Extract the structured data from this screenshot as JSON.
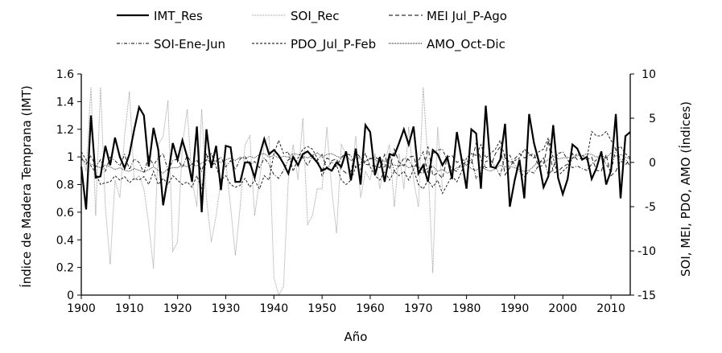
{
  "chart_data": {
    "type": "line",
    "xlabel": "Año",
    "ylabel": "Índice de  Madera Temprana (IMT)",
    "y2label": "SOI, MEI, PDO, AMO (Índices)",
    "xlim": [
      1900,
      2014
    ],
    "ylim": [
      0,
      1.6
    ],
    "y2lim": [
      -15,
      10
    ],
    "xticks": [
      "1900",
      "1910",
      "1920",
      "1930",
      "1940",
      "1950",
      "1960",
      "1970",
      "1980",
      "1990",
      "2000",
      "2010"
    ],
    "yticks": [
      "0",
      "0.2",
      "0.4",
      "0.6",
      "0.8",
      "1",
      "1.2",
      "1.4",
      "1.6"
    ],
    "y2ticks": [
      "-15",
      "-10",
      "-5",
      "0",
      "5",
      "10"
    ],
    "grid": false,
    "legend_position": "top",
    "series": [
      {
        "name": "IMT_Res",
        "axis": "left",
        "style": "solid-thick",
        "start": 1900,
        "values": [
          0.93,
          0.62,
          1.3,
          0.85,
          0.86,
          1.08,
          0.94,
          1.14,
          1.0,
          0.92,
          1.02,
          1.2,
          1.36,
          1.3,
          0.93,
          1.21,
          1.05,
          0.65,
          0.86,
          1.1,
          0.98,
          1.12,
          1.0,
          0.82,
          1.22,
          0.6,
          1.2,
          0.92,
          1.08,
          0.76,
          1.08,
          1.07,
          0.82,
          0.82,
          0.96,
          0.96,
          0.85,
          1.01,
          1.13,
          1.02,
          1.05,
          1.01,
          0.95,
          0.88,
          1.0,
          0.94,
          1.02,
          1.04,
          1.0,
          0.96,
          0.9,
          0.92,
          0.9,
          0.96,
          0.93,
          1.04,
          0.83,
          1.06,
          0.8,
          1.23,
          1.18,
          0.87,
          1.0,
          0.82,
          1.02,
          1.01,
          1.1,
          1.2,
          1.09,
          1.22,
          0.88,
          0.94,
          0.82,
          1.05,
          1.02,
          0.94,
          1.0,
          0.84,
          1.18,
          0.98,
          0.77,
          1.2,
          1.17,
          0.77,
          1.37,
          0.93,
          0.92,
          0.98,
          1.24,
          0.64,
          0.83,
          0.98,
          0.7,
          1.31,
          1.1,
          0.97,
          0.78,
          0.86,
          1.23,
          0.85,
          0.73,
          0.84,
          1.09,
          1.06,
          0.98,
          1.0,
          0.84,
          0.92,
          1.04,
          0.8,
          0.9,
          1.31,
          0.7,
          1.15,
          1.18
        ]
      },
      {
        "name": "SOI_Rec",
        "axis": "right",
        "style": "dotted-grey",
        "start": 1900,
        "values": [
          1,
          -1,
          8.5,
          -6,
          8.5,
          -5,
          -11.5,
          -2,
          -4,
          3,
          8,
          -2,
          -1.5,
          -3,
          -7,
          -12,
          2,
          3,
          7,
          -10,
          -9,
          2,
          6,
          -2,
          -5,
          6,
          -4,
          -9,
          -6,
          -2,
          0,
          -5,
          -10.5,
          -5,
          2,
          3,
          -6,
          -2,
          2,
          3,
          -13,
          -15,
          -14,
          -2,
          2,
          -2,
          5,
          -7,
          -6,
          -3,
          -3,
          4,
          -3,
          -8,
          2,
          1,
          -2,
          3,
          -4,
          -1,
          -2,
          1,
          -3,
          0,
          2,
          -5,
          1,
          -3,
          4,
          -2,
          -5,
          8.5,
          0,
          -12.5,
          4,
          -3
        ]
      },
      {
        "name": "MEI Jul_P-Ago",
        "axis": "right",
        "style": "dashed-long",
        "start": 1950,
        "values": [
          -1.0,
          0.5,
          0.2,
          0.4,
          -0.8,
          -1.2,
          -1.0,
          1.2,
          0.5,
          -0.2,
          -0.3,
          -0.4,
          -0.6,
          0.9,
          -0.8,
          1.5,
          0.0,
          -0.4,
          0.6,
          0.7,
          -1.0,
          -1.3,
          1.8,
          -1.5,
          -1.2,
          -1.8,
          0.6,
          0.8,
          0.0,
          0.3,
          0.2,
          -0.2,
          2.2,
          0.3,
          -0.6,
          -0.5,
          1.0,
          1.8,
          -1.4,
          -0.6,
          0.4,
          1.0,
          0.5,
          0.8,
          1.0,
          -0.5,
          -0.3,
          2.5,
          -1.2,
          -1.0,
          -0.5,
          -0.2,
          1.0,
          0.3,
          0.5,
          0.3,
          0.6,
          -0.9,
          -1.0,
          0.9,
          -1.5,
          -1.0,
          0.2,
          -0.3,
          0.5
        ]
      },
      {
        "name": "SOI-Ene-Jun",
        "axis": "right",
        "style": "dash-dot",
        "start": 1900,
        "values": [
          0.5,
          -0.2,
          0.8,
          -0.5,
          0.3,
          -1.0,
          0.6,
          0.2,
          -0.4,
          0.9,
          -0.8,
          0.4,
          0.0,
          -1.2,
          0.7,
          -0.3,
          0.5,
          1.0,
          -0.9,
          0.2,
          0.4,
          -0.6,
          0.8,
          -0.2,
          0.3,
          -1.0,
          0.9,
          -0.4,
          0.1,
          0.6,
          -0.5,
          0.2,
          -0.8,
          0.4,
          0.7,
          -0.3,
          0.1,
          -0.6,
          0.5,
          -0.2,
          -1.4,
          -1.8,
          -0.9,
          0.3,
          0.5,
          -0.2,
          0.6,
          -0.4,
          0.8,
          0.2,
          0.9,
          -0.7,
          0.1,
          -0.5,
          0.6,
          1.0,
          0.8,
          -0.6,
          -0.8,
          0.2,
          0.4,
          0.6,
          0.3,
          -0.6,
          0.9,
          -1.0,
          -0.4,
          0.5,
          0.3,
          -0.7,
          0.2,
          1.2,
          -1.2,
          1.0,
          1.4,
          1.5,
          0.2,
          -0.8,
          -1.0,
          0.0,
          -0.3,
          0.4,
          -1.8,
          -1.2,
          0.1,
          0.3,
          -0.5,
          -1.5,
          0.9,
          0.8,
          -0.3,
          -1.0,
          -1.6,
          -1.0,
          -1.2,
          -0.3,
          0.6,
          -1.5,
          -0.6,
          1.0,
          1.2,
          0.3,
          -0.6,
          -0.4,
          -0.7,
          -0.9,
          -0.2,
          0.3,
          0.9,
          -0.2,
          -1.0,
          1.5,
          0.3,
          0.4,
          -0.5
        ]
      },
      {
        "name": "PDO_Jul_P-Feb",
        "axis": "right",
        "style": "dashed-short",
        "start": 1900,
        "values": [
          1.2,
          0.3,
          -0.4,
          -1.2,
          -2.5,
          -2.3,
          -2.2,
          -1.5,
          -2.0,
          -1.6,
          -2.3,
          -1.8,
          -2.0,
          -1.6,
          -2.5,
          -1.0,
          -2.5,
          -1.8,
          -2.5,
          -1.5,
          -2.0,
          -2.5,
          -2.2,
          -2.8,
          -1.5,
          -3.0,
          0.5,
          1.0,
          -0.5,
          -2.0,
          -1.5,
          -2.5,
          -2.8,
          -2.6,
          -1.8,
          -2.8,
          -2.0,
          -3.0,
          -1.5,
          -2.0,
          1.0,
          2.5,
          1.0,
          1.2,
          -1.0,
          0.5,
          1.5,
          1.8,
          1.5,
          0.5,
          -1.5,
          -0.5,
          -1.0,
          -0.3,
          -2.0,
          -2.5,
          -2.0,
          -0.5,
          -0.2,
          1.0,
          -0.5,
          -1.5,
          -2.0,
          -1.0,
          -2.0,
          -1.0,
          -1.5,
          -1.0,
          -2.0,
          -0.8,
          -2.5,
          -3.0,
          -2.0,
          -2.8,
          -2.0,
          -3.5,
          -2.5,
          -1.5,
          -2.2,
          -1.0,
          0.5,
          1.0,
          0.8,
          2.0,
          0.5,
          1.0,
          1.5,
          2.5,
          0.5,
          0.0,
          0.2,
          0.5,
          1.5,
          1.0,
          0.5,
          1.2,
          1.5,
          2.8,
          0.5,
          -1.5,
          -1.0,
          -0.5,
          0.5,
          1.0,
          0.8,
          0.5,
          3.5,
          3.0,
          3.0,
          3.5,
          2.5,
          1.5,
          1.8,
          1.0,
          0.5
        ]
      },
      {
        "name": "AMO_Oct-Dic",
        "axis": "right",
        "style": "dotted-dense",
        "start": 1900,
        "values": [
          0.3,
          0.1,
          -0.2,
          -0.4,
          -0.6,
          -0.3,
          -0.5,
          -0.8,
          -0.6,
          -0.9,
          -1.0,
          -0.7,
          -0.9,
          -1.1,
          -0.8,
          -0.5,
          -0.9,
          -1.2,
          -0.7,
          -0.6,
          -0.6,
          -0.3,
          -0.5,
          -0.2,
          -0.4,
          -0.1,
          0.3,
          0.1,
          0.2,
          0.0,
          0.3,
          0.5,
          0.2,
          0.6,
          0.4,
          0.7,
          0.5,
          0.9,
          1.0,
          0.6,
          0.8,
          0.5,
          0.7,
          0.6,
          1.0,
          0.9,
          0.7,
          0.5,
          0.8,
          1.1,
          0.6,
          0.9,
          1.0,
          0.7,
          0.5,
          0.8,
          0.2,
          0.6,
          0.4,
          0.1,
          0.5,
          0.3,
          0.0,
          0.2,
          -0.1,
          -0.3,
          -0.4,
          -0.2,
          -0.6,
          -0.4,
          -0.5,
          -0.9,
          -0.7,
          -0.4,
          -1.0,
          -0.8,
          -1.2,
          -0.9,
          -0.6,
          -0.5,
          -0.3,
          -0.7,
          -0.9,
          -0.5,
          -0.8,
          -1.0,
          -0.7,
          -0.3,
          -0.5,
          -0.4,
          -0.6,
          -0.8,
          -1.0,
          -0.9,
          -0.4,
          0.2,
          0.0,
          0.3,
          0.7,
          0.4,
          0.5,
          0.6,
          0.4,
          0.8,
          0.7,
          1.0,
          0.9,
          0.6,
          0.8,
          0.5,
          1.1,
          0.7,
          0.9,
          0.6,
          0.4
        ]
      }
    ]
  }
}
